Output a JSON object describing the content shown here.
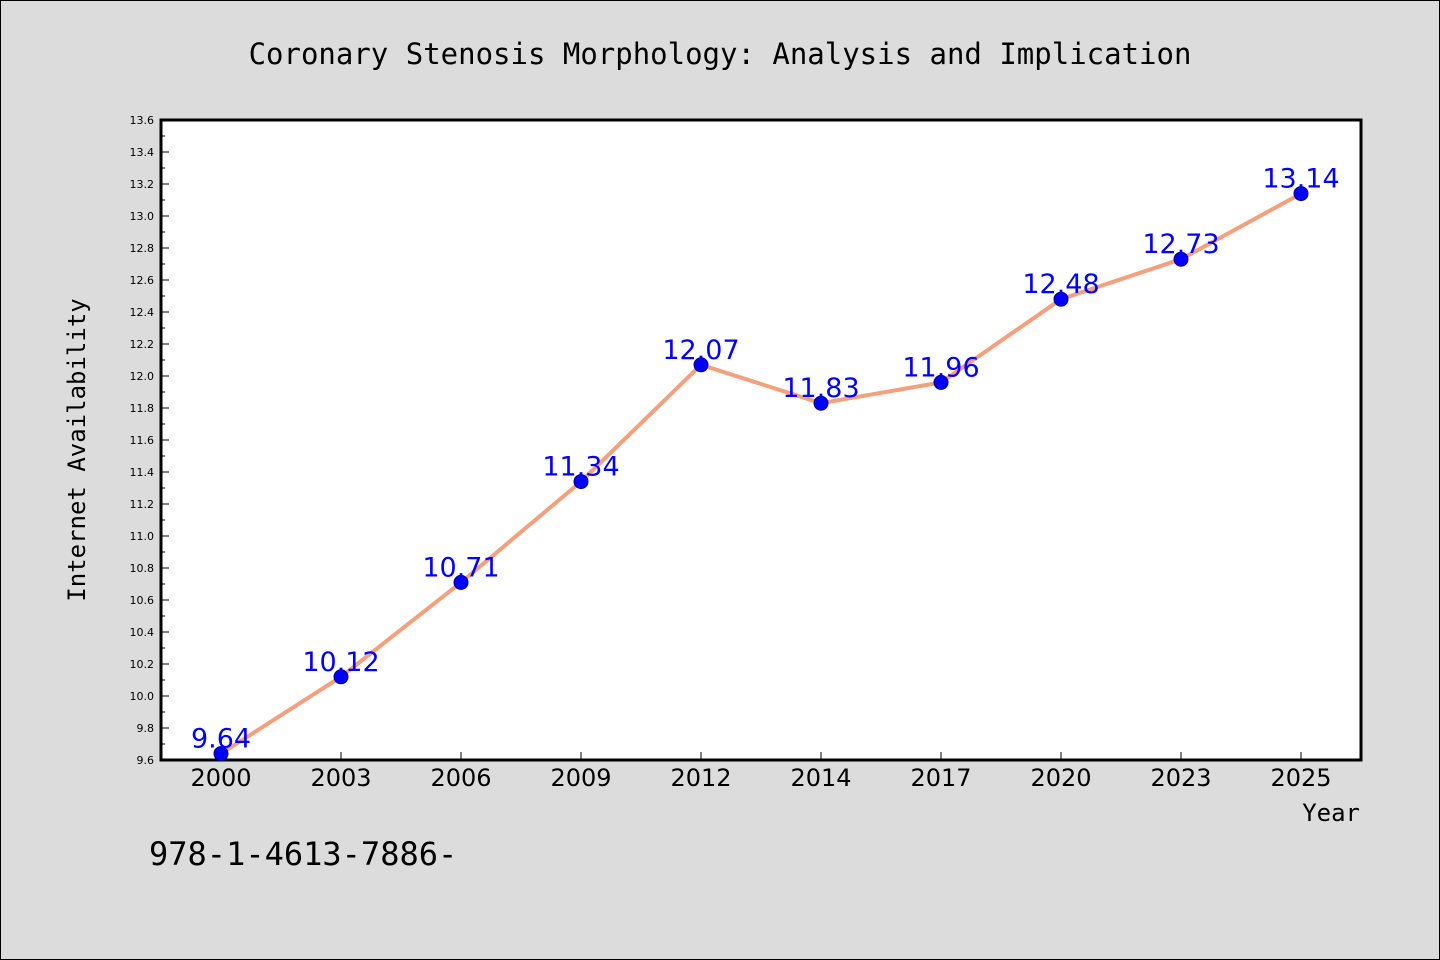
{
  "chart_data": {
    "type": "line",
    "title": "Coronary Stenosis Morphology: Analysis and Implication",
    "xlabel": "Year",
    "ylabel": "Internet Availability",
    "categories": [
      "2000",
      "2003",
      "2006",
      "2009",
      "2012",
      "2014",
      "2017",
      "2020",
      "2023",
      "2025"
    ],
    "values": [
      9.64,
      10.12,
      10.71,
      11.34,
      12.07,
      11.83,
      11.96,
      12.48,
      12.73,
      13.14
    ],
    "data_labels": [
      "9.64",
      "10.12",
      "10.71",
      "11.34",
      "12.07",
      "11.83",
      "11.96",
      "12.48",
      "12.73",
      "13.14"
    ],
    "ylim": [
      9.6,
      13.6
    ],
    "yticks": [
      "9.6",
      "9.8",
      "10.0",
      "10.2",
      "10.4",
      "10.6",
      "10.8",
      "11.0",
      "11.2",
      "11.4",
      "11.6",
      "11.8",
      "12.0",
      "12.2",
      "12.4",
      "12.6",
      "12.8",
      "13.0",
      "13.2",
      "13.4",
      "13.6"
    ],
    "grid": false,
    "legend": false
  },
  "footer": {
    "text": "978-1-4613-7886-"
  },
  "colors": {
    "background": "#dcdcdc",
    "plot_area": "#ffffff",
    "line": "#f4a07c",
    "marker": "#0000ff",
    "data_label": "#0000ff"
  }
}
